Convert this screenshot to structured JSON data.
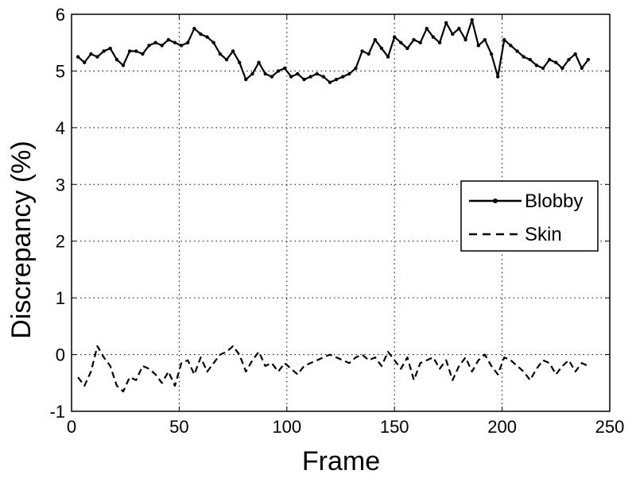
{
  "chart_data": {
    "type": "line",
    "title": "",
    "xlabel": "Frame",
    "ylabel": "Discrepancy (%)",
    "xlim": [
      0,
      250
    ],
    "ylim": [
      -1,
      6
    ],
    "xticks": [
      0,
      50,
      100,
      150,
      200,
      250
    ],
    "yticks": [
      -1,
      0,
      1,
      2,
      3,
      4,
      5,
      6
    ],
    "grid": "dotted",
    "legend_position": "right",
    "series": [
      {
        "name": "Blobby",
        "line_style": "solid",
        "marker": "dot",
        "color": "#000000",
        "x": [
          3,
          6,
          9,
          12,
          15,
          18,
          21,
          24,
          27,
          30,
          33,
          36,
          39,
          42,
          45,
          48,
          51,
          54,
          57,
          60,
          63,
          66,
          69,
          72,
          75,
          78,
          81,
          84,
          87,
          90,
          93,
          96,
          99,
          102,
          105,
          108,
          111,
          114,
          117,
          120,
          123,
          126,
          129,
          132,
          135,
          138,
          141,
          144,
          147,
          150,
          153,
          156,
          159,
          162,
          165,
          168,
          171,
          174,
          177,
          180,
          183,
          186,
          189,
          192,
          195,
          198,
          201,
          204,
          207,
          210,
          213,
          216,
          219,
          222,
          225,
          228,
          231,
          234,
          237,
          240
        ],
        "values": [
          5.25,
          5.15,
          5.3,
          5.25,
          5.35,
          5.4,
          5.2,
          5.1,
          5.35,
          5.35,
          5.3,
          5.45,
          5.5,
          5.45,
          5.55,
          5.5,
          5.45,
          5.5,
          5.75,
          5.65,
          5.6,
          5.5,
          5.3,
          5.2,
          5.35,
          5.15,
          4.85,
          4.95,
          5.15,
          4.95,
          4.9,
          5.0,
          5.05,
          4.9,
          4.95,
          4.85,
          4.9,
          4.95,
          4.9,
          4.8,
          4.85,
          4.9,
          4.95,
          5.05,
          5.35,
          5.3,
          5.55,
          5.4,
          5.25,
          5.6,
          5.5,
          5.4,
          5.55,
          5.5,
          5.75,
          5.6,
          5.5,
          5.85,
          5.65,
          5.75,
          5.55,
          5.9,
          5.45,
          5.55,
          5.3,
          4.9,
          5.55,
          5.45,
          5.35,
          5.25,
          5.2,
          5.1,
          5.05,
          5.2,
          5.15,
          5.05,
          5.2,
          5.3,
          5.05,
          5.2
        ]
      },
      {
        "name": "Skin",
        "line_style": "dashed",
        "marker": "none",
        "color": "#000000",
        "x": [
          3,
          6,
          9,
          12,
          15,
          18,
          21,
          24,
          27,
          30,
          33,
          36,
          39,
          42,
          45,
          48,
          51,
          54,
          57,
          60,
          63,
          66,
          69,
          72,
          75,
          78,
          81,
          84,
          87,
          90,
          93,
          96,
          99,
          102,
          105,
          108,
          111,
          114,
          117,
          120,
          123,
          126,
          129,
          132,
          135,
          138,
          141,
          144,
          147,
          150,
          153,
          156,
          159,
          162,
          165,
          168,
          171,
          174,
          177,
          180,
          183,
          186,
          189,
          192,
          195,
          198,
          201,
          204,
          207,
          210,
          213,
          216,
          219,
          222,
          225,
          228,
          231,
          234,
          237,
          240
        ],
        "values": [
          -0.4,
          -0.55,
          -0.3,
          0.15,
          -0.05,
          -0.2,
          -0.55,
          -0.65,
          -0.4,
          -0.45,
          -0.2,
          -0.25,
          -0.35,
          -0.5,
          -0.3,
          -0.55,
          -0.15,
          -0.1,
          -0.35,
          -0.05,
          -0.3,
          -0.15,
          0.0,
          0.05,
          0.15,
          0.0,
          -0.3,
          -0.1,
          0.05,
          -0.2,
          -0.15,
          -0.3,
          -0.15,
          -0.25,
          -0.35,
          -0.2,
          -0.15,
          -0.1,
          -0.05,
          0.0,
          -0.05,
          -0.1,
          -0.15,
          -0.05,
          0.0,
          -0.1,
          -0.05,
          -0.2,
          0.05,
          -0.1,
          -0.25,
          -0.05,
          -0.45,
          -0.15,
          -0.1,
          -0.05,
          -0.25,
          -0.1,
          -0.45,
          -0.2,
          -0.05,
          -0.3,
          -0.1,
          0.0,
          -0.2,
          -0.35,
          -0.05,
          -0.1,
          -0.2,
          -0.3,
          -0.45,
          -0.25,
          -0.1,
          -0.15,
          -0.35,
          -0.2,
          -0.1,
          -0.3,
          -0.15,
          -0.2
        ]
      }
    ]
  }
}
